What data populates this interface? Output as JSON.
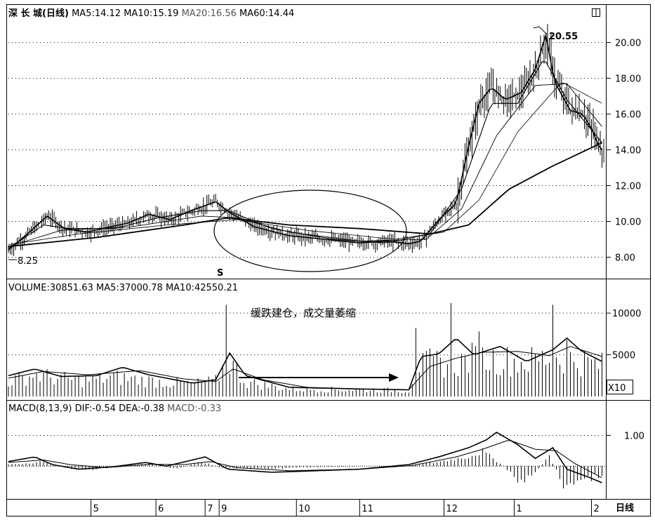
{
  "header": {
    "price_title": "深 长 城(日线)",
    "ma5": "MA5:14.12",
    "ma10": "MA10:15.19",
    "ma20": "MA20:16.56",
    "ma60": "MA60:14.44",
    "volume_title": "VOLUME:30851.63",
    "vol_ma5": "MA5:37000.78",
    "vol_ma10": "MA10:42550.21",
    "macd_title": "MACD(8,13,9)",
    "dif": "DIF:-0.54",
    "dea": "DEA:-0.38",
    "macd": "MACD:-0.33",
    "volume_unit": "X10",
    "period_label": "日线"
  },
  "annotations": {
    "text": "缓跌建仓，成交量萎缩",
    "low_marker": "8.25",
    "high_marker": "20.55",
    "s_marker": "S"
  },
  "colors": {
    "background": "#ffffff",
    "line": "#000000",
    "grid": "#000000"
  },
  "chart_data": [
    {
      "type": "candlestick",
      "y_ticks": [
        "20.00",
        "18.00",
        "16.00",
        "14.00",
        "12.00",
        "10.00",
        "8.00"
      ],
      "y_tick_values": [
        20,
        18,
        16,
        14,
        12,
        10,
        8
      ],
      "ylim": [
        7.0,
        21.2
      ],
      "x_ticks": [
        "5",
        "6",
        "7",
        "9",
        "10",
        "11",
        "12",
        "1",
        "2"
      ],
      "x_tick_index": [
        47,
        84,
        112,
        120,
        164,
        200,
        248,
        288,
        332
      ],
      "n_bars": 340,
      "low": 8.25,
      "high": 20.55,
      "close_path": [
        [
          0,
          8.4
        ],
        [
          12,
          9.4
        ],
        [
          22,
          10.3
        ],
        [
          32,
          9.6
        ],
        [
          45,
          9.4
        ],
        [
          58,
          9.7
        ],
        [
          68,
          9.9
        ],
        [
          80,
          10.4
        ],
        [
          92,
          10.1
        ],
        [
          104,
          10.6
        ],
        [
          118,
          11.1
        ],
        [
          126,
          10.5
        ],
        [
          140,
          9.7
        ],
        [
          160,
          9.2
        ],
        [
          180,
          9.0
        ],
        [
          200,
          8.8
        ],
        [
          215,
          8.9
        ],
        [
          228,
          8.75
        ],
        [
          235,
          8.9
        ],
        [
          245,
          10.1
        ],
        [
          255,
          11.0
        ],
        [
          262,
          14.2
        ],
        [
          268,
          16.6
        ],
        [
          275,
          17.5
        ],
        [
          283,
          16.8
        ],
        [
          292,
          17.2
        ],
        [
          300,
          18.5
        ],
        [
          306,
          20.4
        ],
        [
          311,
          17.8
        ],
        [
          320,
          16.2
        ],
        [
          327,
          16.0
        ],
        [
          332,
          15.2
        ],
        [
          337,
          14.0
        ]
      ],
      "ma_short_path": [
        [
          0,
          8.5
        ],
        [
          20,
          9.8
        ],
        [
          35,
          9.6
        ],
        [
          60,
          9.6
        ],
        [
          85,
          10.2
        ],
        [
          110,
          10.6
        ],
        [
          125,
          10.6
        ],
        [
          150,
          9.6
        ],
        [
          185,
          9.0
        ],
        [
          215,
          8.8
        ],
        [
          240,
          9.3
        ],
        [
          258,
          11.8
        ],
        [
          275,
          16.6
        ],
        [
          290,
          16.6
        ],
        [
          305,
          19.1
        ],
        [
          318,
          16.8
        ],
        [
          338,
          14.4
        ]
      ],
      "ma_mid_path": [
        [
          0,
          8.6
        ],
        [
          30,
          9.5
        ],
        [
          70,
          9.7
        ],
        [
          110,
          10.3
        ],
        [
          130,
          10.2
        ],
        [
          160,
          9.4
        ],
        [
          200,
          8.9
        ],
        [
          238,
          9.0
        ],
        [
          258,
          10.7
        ],
        [
          278,
          14.8
        ],
        [
          300,
          17.6
        ],
        [
          318,
          17.7
        ],
        [
          338,
          15.3
        ]
      ],
      "ma_long_path": [
        [
          0,
          8.7
        ],
        [
          40,
          9.3
        ],
        [
          90,
          9.8
        ],
        [
          130,
          10.1
        ],
        [
          170,
          9.5
        ],
        [
          220,
          9.0
        ],
        [
          248,
          9.4
        ],
        [
          268,
          11.2
        ],
        [
          290,
          15.0
        ],
        [
          315,
          17.8
        ],
        [
          338,
          16.6
        ]
      ],
      "ma60_path": [
        [
          0,
          8.6
        ],
        [
          50,
          9.1
        ],
        [
          100,
          9.8
        ],
        [
          125,
          10.2
        ],
        [
          160,
          9.8
        ],
        [
          200,
          9.6
        ],
        [
          240,
          9.3
        ],
        [
          262,
          9.8
        ],
        [
          285,
          11.8
        ],
        [
          310,
          13.1
        ],
        [
          338,
          14.4
        ]
      ]
    },
    {
      "type": "bar",
      "y_ticks": [
        "10000",
        "5000"
      ],
      "y_tick_values": [
        10000,
        5000
      ],
      "ylim": [
        0,
        12200
      ],
      "level_path": [
        [
          0,
          1800
        ],
        [
          15,
          2600
        ],
        [
          30,
          2100
        ],
        [
          45,
          1900
        ],
        [
          60,
          2300
        ],
        [
          75,
          2000
        ],
        [
          90,
          1700
        ],
        [
          105,
          1500
        ],
        [
          118,
          1800
        ],
        [
          125,
          4500
        ],
        [
          135,
          1700
        ],
        [
          160,
          900
        ],
        [
          200,
          800
        ],
        [
          228,
          700
        ],
        [
          232,
          3500
        ],
        [
          240,
          4000
        ],
        [
          255,
          3900
        ],
        [
          265,
          4600
        ],
        [
          280,
          4400
        ],
        [
          295,
          4100
        ],
        [
          310,
          4800
        ],
        [
          325,
          4300
        ],
        [
          338,
          3700
        ]
      ],
      "spikes": [
        [
          125,
          11000
        ],
        [
          232,
          8200
        ],
        [
          253,
          11200
        ],
        [
          268,
          7800
        ],
        [
          311,
          11000
        ],
        [
          318,
          6800
        ]
      ],
      "ma_short_path": [
        [
          0,
          2500
        ],
        [
          15,
          3300
        ],
        [
          30,
          2400
        ],
        [
          50,
          2500
        ],
        [
          65,
          3500
        ],
        [
          80,
          2600
        ],
        [
          105,
          1600
        ],
        [
          118,
          2000
        ],
        [
          126,
          5200
        ],
        [
          135,
          2500
        ],
        [
          160,
          1100
        ],
        [
          200,
          900
        ],
        [
          228,
          800
        ],
        [
          235,
          4800
        ],
        [
          245,
          5100
        ],
        [
          255,
          7000
        ],
        [
          265,
          5000
        ],
        [
          280,
          6000
        ],
        [
          295,
          4200
        ],
        [
          310,
          5600
        ],
        [
          318,
          7000
        ],
        [
          326,
          5500
        ],
        [
          338,
          4200
        ]
      ],
      "ma_long_path": [
        [
          0,
          2200
        ],
        [
          20,
          3000
        ],
        [
          45,
          2600
        ],
        [
          75,
          3100
        ],
        [
          100,
          2100
        ],
        [
          118,
          1800
        ],
        [
          128,
          3300
        ],
        [
          145,
          2000
        ],
        [
          170,
          1100
        ],
        [
          200,
          900
        ],
        [
          228,
          800
        ],
        [
          240,
          3600
        ],
        [
          255,
          4600
        ],
        [
          270,
          5300
        ],
        [
          290,
          5400
        ],
        [
          308,
          4900
        ],
        [
          320,
          6000
        ],
        [
          338,
          4800
        ]
      ]
    },
    {
      "type": "bar",
      "y_ticks": [
        "1.00"
      ],
      "y_tick_values": [
        1.0
      ],
      "ylim": [
        -1.0,
        1.65
      ],
      "histogram_path": [
        [
          0,
          0.06
        ],
        [
          10,
          0.1
        ],
        [
          18,
          0.15
        ],
        [
          25,
          0.05
        ],
        [
          35,
          -0.08
        ],
        [
          50,
          -0.12
        ],
        [
          65,
          0.02
        ],
        [
          80,
          0.1
        ],
        [
          95,
          -0.1
        ],
        [
          110,
          0.15
        ],
        [
          120,
          -0.05
        ],
        [
          140,
          -0.1
        ],
        [
          165,
          -0.05
        ],
        [
          190,
          -0.02
        ],
        [
          215,
          0.01
        ],
        [
          230,
          0.02
        ],
        [
          245,
          0.15
        ],
        [
          260,
          0.3
        ],
        [
          270,
          0.5
        ],
        [
          280,
          0.1
        ],
        [
          292,
          -0.6
        ],
        [
          300,
          -0.2
        ],
        [
          308,
          0.35
        ],
        [
          316,
          -0.65
        ],
        [
          325,
          -0.5
        ],
        [
          338,
          -0.33
        ]
      ],
      "dif_path": [
        [
          0,
          0.15
        ],
        [
          15,
          0.3
        ],
        [
          25,
          0.05
        ],
        [
          40,
          -0.1
        ],
        [
          60,
          -0.02
        ],
        [
          78,
          0.12
        ],
        [
          90,
          0.0
        ],
        [
          112,
          0.3
        ],
        [
          125,
          -0.1
        ],
        [
          150,
          -0.2
        ],
        [
          175,
          -0.15
        ],
        [
          200,
          -0.1
        ],
        [
          228,
          0.05
        ],
        [
          245,
          0.3
        ],
        [
          262,
          0.6
        ],
        [
          272,
          0.85
        ],
        [
          278,
          1.1
        ],
        [
          290,
          0.7
        ],
        [
          300,
          0.25
        ],
        [
          310,
          0.6
        ],
        [
          318,
          -0.1
        ],
        [
          330,
          -0.35
        ],
        [
          338,
          -0.54
        ]
      ],
      "dea_path": [
        [
          0,
          0.12
        ],
        [
          20,
          0.2
        ],
        [
          35,
          0.05
        ],
        [
          55,
          -0.05
        ],
        [
          80,
          0.06
        ],
        [
          100,
          0.05
        ],
        [
          115,
          0.15
        ],
        [
          130,
          -0.05
        ],
        [
          160,
          -0.15
        ],
        [
          200,
          -0.1
        ],
        [
          230,
          0.02
        ],
        [
          255,
          0.3
        ],
        [
          270,
          0.55
        ],
        [
          285,
          0.85
        ],
        [
          300,
          0.55
        ],
        [
          312,
          0.5
        ],
        [
          322,
          0.1
        ],
        [
          338,
          -0.38
        ]
      ]
    }
  ]
}
